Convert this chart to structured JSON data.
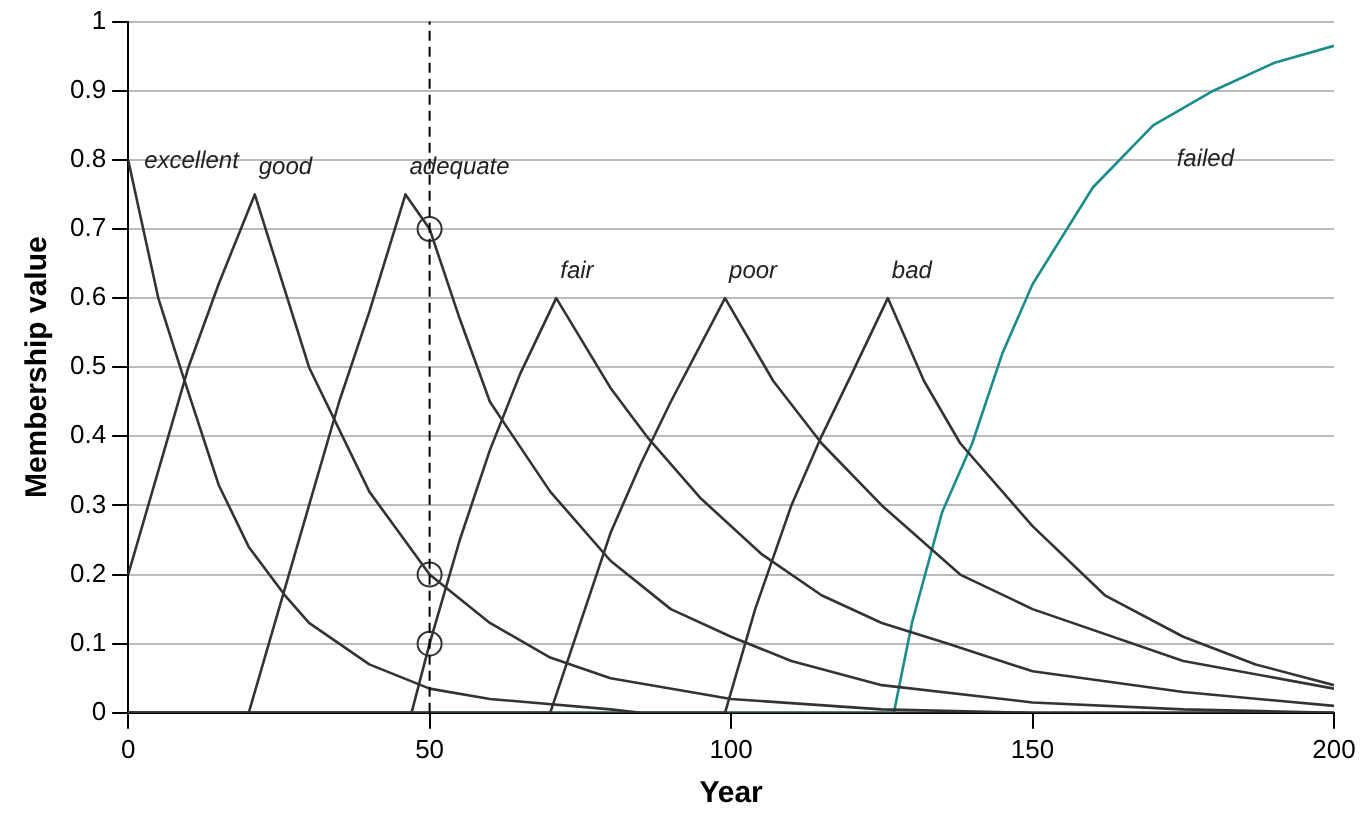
{
  "chart_data": {
    "type": "line",
    "xlabel": "Year",
    "ylabel": "Membership value",
    "xlim": [
      0,
      200
    ],
    "xticks": [
      0,
      50,
      100,
      150,
      200
    ],
    "ylim": [
      0,
      1
    ],
    "yticks": [
      0,
      0.1,
      0.2,
      0.3,
      0.4,
      0.5,
      0.6,
      0.7,
      0.8,
      0.9,
      1
    ],
    "grid": "y",
    "legend": false,
    "marker": "none",
    "line_style": "solid",
    "ref_lines": [
      {
        "axis": "x",
        "value": 50,
        "line_style": "dashed",
        "color": "#000000"
      }
    ],
    "series": [
      {
        "name": "excellent",
        "color": "#333333",
        "x": [
          0,
          5,
          9,
          15,
          20,
          26,
          30,
          40,
          50,
          60,
          80,
          85,
          200
        ],
        "values": [
          0.8,
          0.6,
          0.49,
          0.33,
          0.24,
          0.17,
          0.13,
          0.07,
          0.035,
          0.02,
          0.005,
          0,
          0
        ]
      },
      {
        "name": "good",
        "color": "#333333",
        "x": [
          0,
          5,
          10,
          15,
          21,
          30,
          40,
          50,
          60,
          70,
          80,
          100,
          125,
          150,
          200
        ],
        "values": [
          0.2,
          0.35,
          0.5,
          0.62,
          0.75,
          0.5,
          0.32,
          0.2,
          0.13,
          0.08,
          0.05,
          0.02,
          0.005,
          0,
          0
        ]
      },
      {
        "name": "adequate",
        "color": "#333333",
        "x": [
          0,
          20,
          25,
          30,
          35,
          40,
          46,
          50,
          55,
          60,
          70,
          80,
          90,
          100,
          110,
          125,
          150,
          175,
          200
        ],
        "values": [
          0,
          0,
          0.15,
          0.3,
          0.45,
          0.58,
          0.75,
          0.7,
          0.57,
          0.45,
          0.32,
          0.22,
          0.15,
          0.11,
          0.075,
          0.04,
          0.015,
          0.005,
          0
        ]
      },
      {
        "name": "fair",
        "color": "#333333",
        "x": [
          0,
          47,
          50,
          55,
          60,
          65,
          71,
          80,
          86,
          95,
          105,
          115,
          125,
          136,
          150,
          175,
          200
        ],
        "values": [
          0,
          0,
          0.1,
          0.25,
          0.38,
          0.49,
          0.6,
          0.47,
          0.4,
          0.31,
          0.23,
          0.17,
          0.13,
          0.1,
          0.06,
          0.03,
          0.01
        ]
      },
      {
        "name": "poor",
        "color": "#333333",
        "x": [
          0,
          70,
          75,
          80,
          85,
          90,
          99,
          107,
          115,
          125,
          138,
          150,
          175,
          200
        ],
        "values": [
          0,
          0,
          0.13,
          0.26,
          0.36,
          0.45,
          0.6,
          0.48,
          0.39,
          0.3,
          0.2,
          0.15,
          0.075,
          0.035
        ]
      },
      {
        "name": "bad",
        "color": "#333333",
        "x": [
          0,
          99,
          104,
          110,
          115,
          120,
          126,
          132,
          138,
          150,
          162,
          175,
          187,
          200
        ],
        "values": [
          0,
          0,
          0.15,
          0.3,
          0.4,
          0.49,
          0.6,
          0.48,
          0.39,
          0.27,
          0.17,
          0.11,
          0.07,
          0.04
        ]
      },
      {
        "name": "failed",
        "color": "#1a8c8c",
        "x": [
          0,
          127,
          130,
          135,
          140,
          145,
          150,
          160,
          170,
          180,
          190,
          200
        ],
        "values": [
          0,
          0,
          0.13,
          0.29,
          0.39,
          0.52,
          0.62,
          0.76,
          0.85,
          0.9,
          0.94,
          0.965
        ]
      },
      {
        "type": "scatter",
        "marker": "circle",
        "color": "#333333",
        "x": [
          50,
          50,
          50
        ],
        "values": [
          0.7,
          0.2,
          0.1
        ]
      }
    ]
  }
}
